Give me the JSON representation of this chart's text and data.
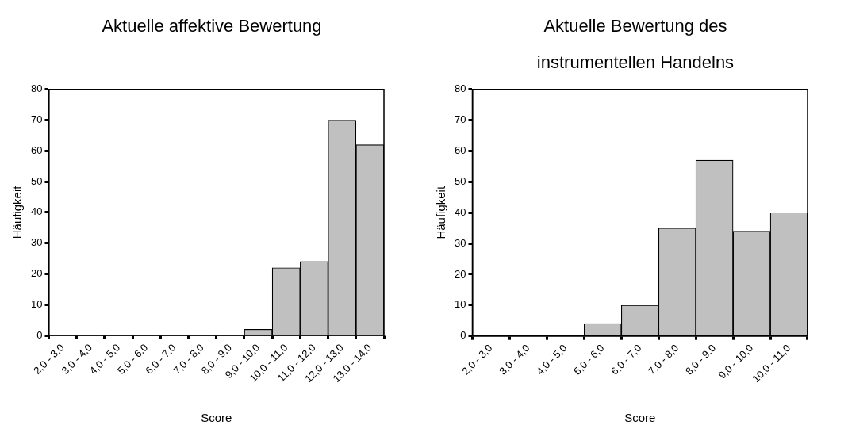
{
  "chart_data": [
    {
      "type": "bar",
      "title": "Aktuelle affektive Bewertung",
      "xlabel": "Score",
      "ylabel": "Häufigkeit",
      "categories": [
        "2,0 - 3,0",
        "3,0 - 4,0",
        "4,0 - 5,0",
        "5,0 - 6,0",
        "6,0 - 7,0",
        "7,0 - 8,0",
        "8,0 - 9,0",
        "9,0 - 10,0",
        "10,0 - 11,0",
        "11,0 - 12,0",
        "12,0 - 13,0",
        "13,0 - 14,0"
      ],
      "values": [
        0,
        0,
        0,
        0,
        0,
        0,
        0,
        2,
        22,
        24,
        70,
        62
      ],
      "color": "#c0c0c0",
      "ylim": [
        0,
        80
      ],
      "yticks": [
        0,
        10,
        20,
        30,
        40,
        50,
        60,
        70,
        80
      ],
      "grid": false,
      "legend": false
    },
    {
      "type": "bar",
      "title": "Aktuelle Bewertung des instrumentellen Handelns",
      "xlabel": "Score",
      "ylabel": "Häufigkeit",
      "categories": [
        "2,0 - 3,0",
        "3,0 - 4,0",
        "4,0 - 5,0",
        "5,0 - 6,0",
        "6,0 - 7,0",
        "7,0 - 8,0",
        "8,0 - 9,0",
        "9,0 - 10,0",
        "10,0 - 11,0"
      ],
      "values": [
        0,
        0,
        0,
        4,
        10,
        35,
        57,
        34,
        40
      ],
      "color": "#c0c0c0",
      "ylim": [
        0,
        80
      ],
      "yticks": [
        0,
        10,
        20,
        30,
        40,
        50,
        60,
        70,
        80
      ],
      "grid": false,
      "legend": false
    }
  ]
}
